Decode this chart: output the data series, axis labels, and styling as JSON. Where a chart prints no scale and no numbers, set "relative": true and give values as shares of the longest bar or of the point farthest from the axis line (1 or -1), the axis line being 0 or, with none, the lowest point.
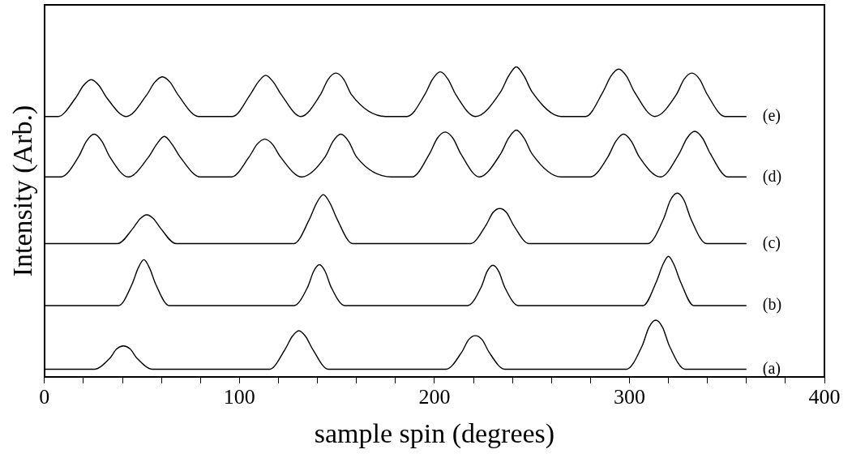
{
  "chart_data": {
    "type": "line",
    "xlabel": "sample spin (degrees)",
    "ylabel": "Intensity (Arb.)",
    "relative": true,
    "xlim": [
      0,
      400
    ],
    "xticks": [
      0,
      {
        "value": 20,
        "label": null
      },
      {
        "value": 40,
        "label": null
      },
      {
        "value": 60,
        "label": null
      },
      {
        "value": 80,
        "label": null
      },
      100,
      {
        "value": 120,
        "label": null
      },
      {
        "value": 140,
        "label": null
      },
      {
        "value": 160,
        "label": null
      },
      {
        "value": 180,
        "label": null
      },
      200,
      {
        "value": 220,
        "label": null
      },
      {
        "value": 240,
        "label": null
      },
      {
        "value": 260,
        "label": null
      },
      {
        "value": 280,
        "label": null
      },
      300,
      {
        "value": 320,
        "label": null
      },
      {
        "value": 340,
        "label": null
      },
      {
        "value": 360,
        "label": null
      },
      {
        "value": 380,
        "label": null
      },
      400
    ],
    "grid": false,
    "legend": false,
    "marker": "none",
    "line_style": "solid",
    "series": [
      {
        "name": "(a)",
        "color": "#000000",
        "x": [
          0,
          25.5,
          33.5,
          37,
          40.5,
          44,
          47.5,
          55.5,
          115.5,
          123.5,
          127,
          130.5,
          134,
          137.5,
          145.5,
          206,
          214,
          217.5,
          221,
          224.5,
          228,
          236,
          298.5,
          306.5,
          310,
          313.5,
          317,
          320.5,
          328.5,
          360
        ],
        "values": [
          0.025,
          0.025,
          0.06,
          0.09,
          0.1,
          0.09,
          0.06,
          0.025,
          0.025,
          0.09,
          0.13,
          0.149,
          0.13,
          0.09,
          0.025,
          0.025,
          0.08,
          0.12,
          0.133,
          0.12,
          0.08,
          0.025,
          0.025,
          0.1,
          0.16,
          0.183,
          0.16,
          0.1,
          0.025,
          0.025
        ]
      },
      {
        "name": "(b)",
        "color": "#000000",
        "x": [
          0,
          38,
          45,
          48,
          51,
          54,
          57,
          64,
          128,
          135,
          138,
          141,
          144,
          147,
          154,
          217,
          224,
          227,
          230,
          233,
          236,
          243,
          307,
          314,
          317,
          320,
          323,
          326,
          333,
          360
        ],
        "values": [
          0.23,
          0.23,
          0.3,
          0.35,
          0.378,
          0.35,
          0.3,
          0.23,
          0.23,
          0.29,
          0.34,
          0.362,
          0.34,
          0.29,
          0.23,
          0.23,
          0.29,
          0.34,
          0.36,
          0.34,
          0.29,
          0.23,
          0.23,
          0.31,
          0.36,
          0.389,
          0.36,
          0.31,
          0.23,
          0.23
        ]
      },
      {
        "name": "(c)",
        "color": "#000000",
        "x": [
          0,
          37.5,
          45.5,
          49,
          52.5,
          56,
          59.5,
          67.5,
          128,
          136,
          139.5,
          143,
          146.5,
          150,
          158,
          218.5,
          226.5,
          230,
          233.5,
          237,
          240.5,
          248.5,
          309.5,
          317.5,
          321,
          324.5,
          328,
          331.5,
          339.5,
          360
        ],
        "values": [
          0.43,
          0.43,
          0.48,
          0.51,
          0.523,
          0.51,
          0.48,
          0.43,
          0.43,
          0.51,
          0.56,
          0.588,
          0.56,
          0.51,
          0.43,
          0.43,
          0.49,
          0.53,
          0.543,
          0.53,
          0.49,
          0.43,
          0.43,
          0.51,
          0.57,
          0.593,
          0.57,
          0.51,
          0.43,
          0.43
        ]
      },
      {
        "name": "(d)",
        "color": "#000000",
        "x": [
          0,
          8.5,
          17.5,
          21.5,
          25.5,
          29.5,
          33.5,
          43,
          53.5,
          57.5,
          61.5,
          65.5,
          69.5,
          80,
          96,
          105,
          109,
          113,
          117,
          121,
          132,
          144,
          148,
          152,
          156,
          160,
          178,
          188.5,
          197.5,
          201.5,
          205.5,
          209.5,
          213.5,
          223,
          234,
          238,
          242,
          246,
          250,
          265,
          280,
          289,
          293,
          297,
          301,
          305,
          316,
          325.5,
          329.5,
          333.5,
          337.5,
          341.5,
          350.5,
          360
        ],
        "values": [
          0.645,
          0.645,
          0.71,
          0.76,
          0.783,
          0.76,
          0.71,
          0.645,
          0.71,
          0.75,
          0.776,
          0.75,
          0.71,
          0.645,
          0.645,
          0.71,
          0.75,
          0.767,
          0.75,
          0.71,
          0.645,
          0.71,
          0.76,
          0.783,
          0.76,
          0.71,
          0.645,
          0.645,
          0.72,
          0.77,
          0.79,
          0.77,
          0.72,
          0.645,
          0.72,
          0.77,
          0.796,
          0.77,
          0.72,
          0.645,
          0.645,
          0.71,
          0.76,
          0.783,
          0.76,
          0.71,
          0.645,
          0.72,
          0.77,
          0.792,
          0.77,
          0.72,
          0.645,
          0.645
        ]
      },
      {
        "name": "(e)",
        "color": "#000000",
        "x": [
          0,
          7,
          16,
          20,
          24,
          28,
          32,
          42,
          52.5,
          56.5,
          60.5,
          64.5,
          68.5,
          79,
          96.5,
          105.5,
          109.5,
          113.5,
          117.5,
          121.5,
          131.5,
          141.5,
          145.5,
          149.5,
          153.5,
          157.5,
          175,
          186,
          195,
          199,
          203,
          207,
          211,
          221,
          234,
          238,
          242,
          246,
          250,
          265,
          277.5,
          286.5,
          290.5,
          294.5,
          298.5,
          302.5,
          313,
          324,
          328,
          332,
          336,
          340,
          349,
          360
        ],
        "values": [
          0.84,
          0.84,
          0.9,
          0.94,
          0.959,
          0.94,
          0.9,
          0.84,
          0.91,
          0.95,
          0.968,
          0.95,
          0.91,
          0.84,
          0.84,
          0.91,
          0.95,
          0.973,
          0.95,
          0.91,
          0.84,
          0.91,
          0.96,
          0.98,
          0.96,
          0.91,
          0.84,
          0.84,
          0.91,
          0.96,
          0.984,
          0.96,
          0.91,
          0.84,
          0.92,
          0.97,
          1.0,
          0.97,
          0.92,
          0.84,
          0.84,
          0.92,
          0.97,
          0.993,
          0.97,
          0.92,
          0.84,
          0.91,
          0.96,
          0.98,
          0.96,
          0.91,
          0.84,
          0.84
        ]
      }
    ]
  }
}
